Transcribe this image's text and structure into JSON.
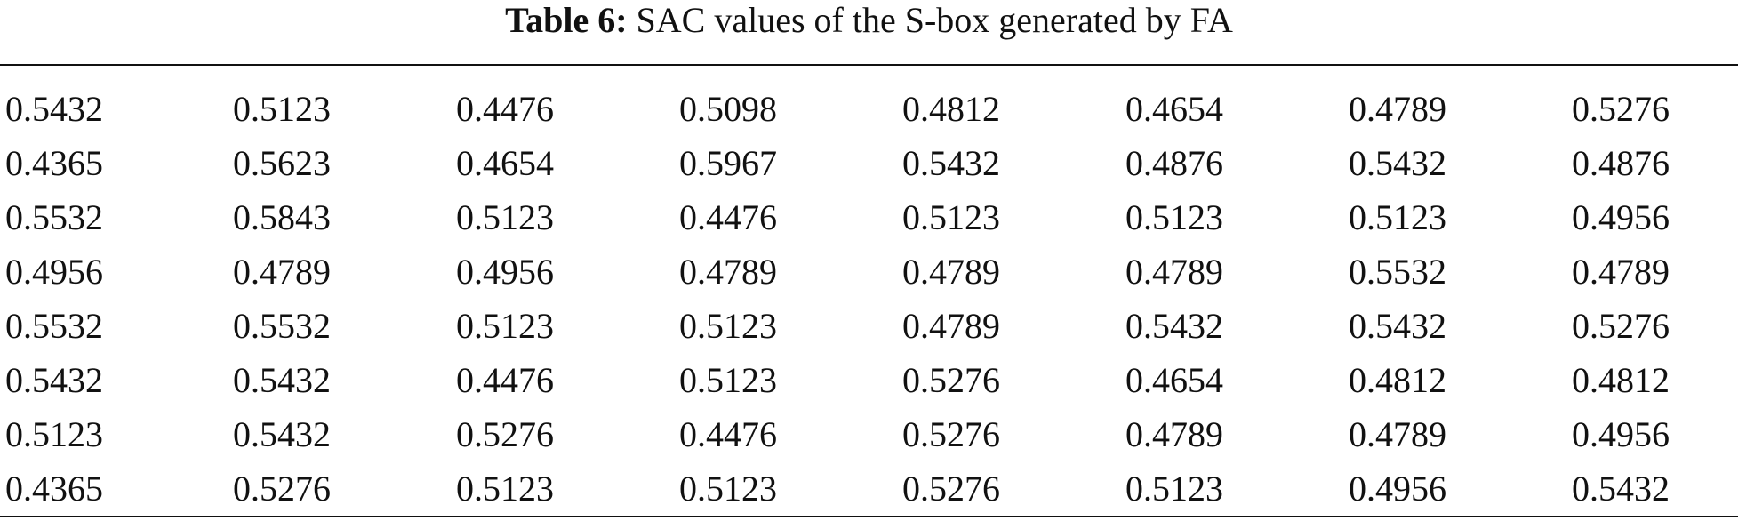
{
  "caption": {
    "label": "Table 6:",
    "text": "SAC values of the S-box generated by FA"
  },
  "table": {
    "rows": [
      [
        "0.5432",
        "0.5123",
        "0.4476",
        "0.5098",
        "0.4812",
        "0.4654",
        "0.4789",
        "0.5276"
      ],
      [
        "0.4365",
        "0.5623",
        "0.4654",
        "0.5967",
        "0.5432",
        "0.4876",
        "0.5432",
        "0.4876"
      ],
      [
        "0.5532",
        "0.5843",
        "0.5123",
        "0.4476",
        "0.5123",
        "0.5123",
        "0.5123",
        "0.4956"
      ],
      [
        "0.4956",
        "0.4789",
        "0.4956",
        "0.4789",
        "0.4789",
        "0.4789",
        "0.5532",
        "0.4789"
      ],
      [
        "0.5532",
        "0.5532",
        "0.5123",
        "0.5123",
        "0.4789",
        "0.5432",
        "0.5432",
        "0.5276"
      ],
      [
        "0.5432",
        "0.5432",
        "0.4476",
        "0.5123",
        "0.5276",
        "0.4654",
        "0.4812",
        "0.4812"
      ],
      [
        "0.5123",
        "0.5432",
        "0.5276",
        "0.4476",
        "0.5276",
        "0.4789",
        "0.4789",
        "0.4956"
      ],
      [
        "0.4365",
        "0.5276",
        "0.5123",
        "0.5123",
        "0.5276",
        "0.5123",
        "0.4956",
        "0.5432"
      ]
    ]
  }
}
